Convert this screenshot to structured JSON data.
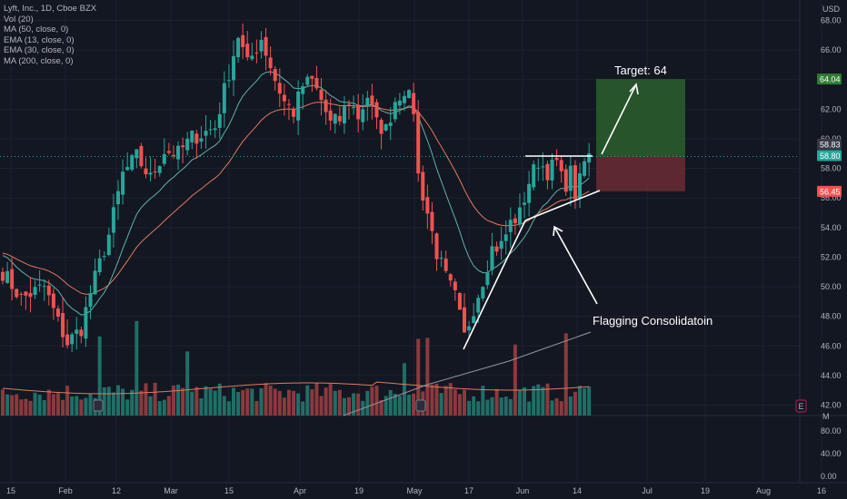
{
  "legend": {
    "symbol": "Lyft, Inc., 1D, Cboe BZX",
    "indicators": [
      "Vol (20)",
      "MA (50, close, 0)",
      "EMA (13, close, 0)",
      "EMA (30, close, 0)",
      "MA (200, close, 0)"
    ]
  },
  "currency": "USD",
  "e_badge": "E",
  "colors": {
    "up": "#26a69a",
    "down": "#ef5350",
    "ema13": "#5fb3a8",
    "ema30": "#e07a5f",
    "ma200": "#9598a1",
    "target_zone": "#2c5f2d",
    "stop_zone": "#6b2b33"
  },
  "annotations": {
    "target": "Target: 64",
    "pattern": "Flagging Consolidatoin"
  },
  "price_tags": [
    {
      "value": "64.04",
      "kind": "target"
    },
    {
      "value": "58.83",
      "kind": "high"
    },
    {
      "value": "58.80",
      "kind": "last"
    },
    {
      "value": "56.45",
      "kind": "stop"
    }
  ],
  "chart_data": {
    "type": "candlestick",
    "x_ticks": [
      "15",
      "Feb",
      "12",
      "Mar",
      "15",
      "Apr",
      "19",
      "May",
      "17",
      "Jun",
      "14",
      "Jul",
      "19",
      "Aug",
      "16"
    ],
    "price_ticks": [
      42,
      44,
      46,
      48,
      50,
      52,
      54,
      56,
      58,
      60,
      62,
      64,
      66,
      68
    ],
    "price_ylim": [
      41.3,
      69.0
    ],
    "volume_ticks": [
      "80.00",
      "40.00",
      "0.00"
    ],
    "volume_axis_unit": "M",
    "trade_setup": {
      "entry": 58.8,
      "target": 64.04,
      "stop": 56.45
    }
  }
}
